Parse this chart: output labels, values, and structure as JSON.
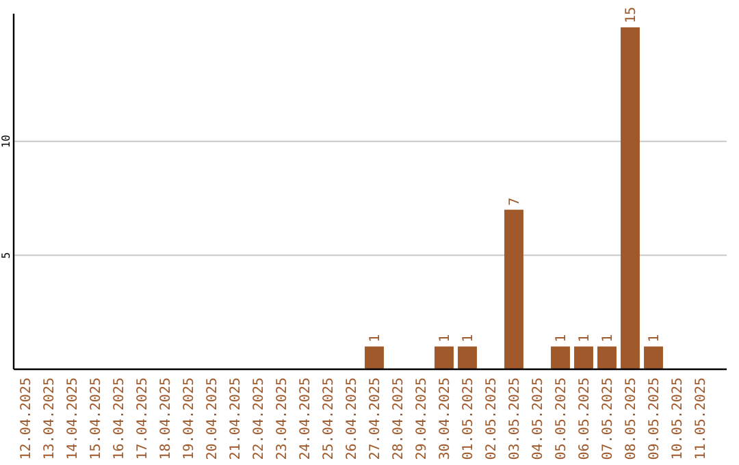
{
  "chart_data": {
    "type": "bar",
    "categories": [
      "12.04.2025",
      "13.04.2025",
      "14.04.2025",
      "15.04.2025",
      "16.04.2025",
      "17.04.2025",
      "18.04.2025",
      "19.04.2025",
      "20.04.2025",
      "21.04.2025",
      "22.04.2025",
      "23.04.2025",
      "24.04.2025",
      "25.04.2025",
      "26.04.2025",
      "27.04.2025",
      "28.04.2025",
      "29.04.2025",
      "30.04.2025",
      "01.05.2025",
      "02.05.2025",
      "03.05.2025",
      "04.05.2025",
      "05.05.2025",
      "06.05.2025",
      "07.05.2025",
      "08.05.2025",
      "09.05.2025",
      "10.05.2025",
      "11.05.2025"
    ],
    "values": [
      0,
      0,
      0,
      0,
      0,
      0,
      0,
      0,
      0,
      0,
      0,
      0,
      0,
      0,
      0,
      1,
      0,
      0,
      1,
      1,
      0,
      7,
      0,
      1,
      1,
      1,
      15,
      1,
      0,
      0
    ],
    "value_labels": [
      null,
      null,
      null,
      null,
      null,
      null,
      null,
      null,
      null,
      null,
      null,
      null,
      null,
      null,
      null,
      "1",
      null,
      null,
      "1",
      "1",
      null,
      "7",
      null,
      "1",
      "1",
      "1",
      "15",
      "1",
      null,
      null
    ],
    "color": "#a0592a",
    "ylim": [
      0,
      15.6
    ],
    "yticks": [
      5,
      10
    ],
    "grid": "y"
  }
}
